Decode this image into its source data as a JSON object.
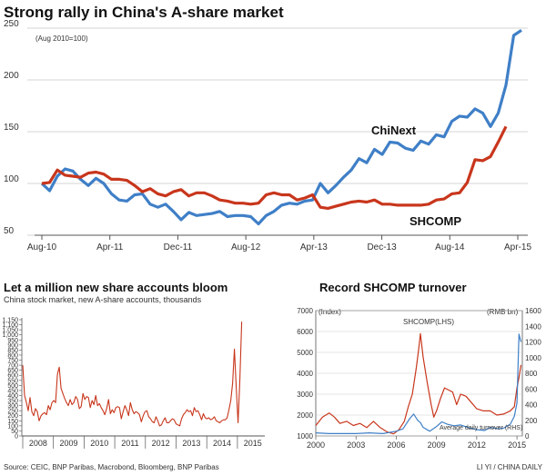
{
  "source": "Source: CEIC, BNP Paribas, Macrobond, Bloomberg, BNP Paribas",
  "credit": "LI YI / CHINA DAILY",
  "colors": {
    "chinext": "#3f7fc7",
    "shcomp": "#c8361c",
    "accounts": "#c8361c",
    "grid": "#c9c9c9",
    "axis": "#555555"
  },
  "chart_data": [
    {
      "type": "line",
      "title": "Strong rally in China's A-share market",
      "subtitle": "(Aug 2010=100)",
      "ylim": [
        50,
        250
      ],
      "yticks": [
        "50",
        "100",
        "150",
        "200",
        "250"
      ],
      "x_ticks": [
        "Aug-10",
        "Apr-11",
        "Dec-11",
        "Aug-12",
        "Apr-13",
        "Dec-13",
        "Aug-14",
        "Apr-15"
      ],
      "series": [
        {
          "name": "ChiNext",
          "values": [
            100,
            93,
            107,
            114,
            112,
            104,
            98,
            105,
            100,
            90,
            84,
            83,
            89,
            90,
            80,
            77,
            80,
            73,
            65,
            72,
            69,
            70,
            71,
            73,
            68,
            69,
            69,
            68,
            61,
            69,
            73,
            79,
            81,
            80,
            83,
            84,
            100,
            91,
            98,
            106,
            113,
            124,
            120,
            133,
            128,
            140,
            139,
            134,
            132,
            141,
            138,
            147,
            145,
            160,
            165,
            164,
            172,
            168,
            155,
            168,
            195,
            243,
            248
          ]
        },
        {
          "name": "SHCOMP",
          "values": [
            100,
            101,
            113,
            108,
            107,
            106,
            110,
            111,
            109,
            104,
            104,
            103,
            98,
            92,
            95,
            90,
            88,
            92,
            94,
            88,
            91,
            91,
            88,
            84,
            83,
            81,
            81,
            80,
            81,
            89,
            91,
            89,
            89,
            84,
            86,
            89,
            77,
            76,
            78,
            80,
            82,
            83,
            82,
            84,
            80,
            80,
            79,
            79,
            79,
            79,
            80,
            84,
            85,
            90,
            91,
            101,
            123,
            122,
            126,
            140,
            155
          ]
        }
      ]
    },
    {
      "type": "line",
      "title": "Let a million new share accounts bloom",
      "subtitle": "China stock market, new A-share accounts, thousands",
      "ylim": [
        0,
        1150
      ],
      "yticks": [
        "0",
        "50",
        "100",
        "150",
        "200",
        "250",
        "300",
        "350",
        "400",
        "450",
        "500",
        "550",
        "600",
        "650",
        "700",
        "750",
        "800",
        "850",
        "900",
        "950",
        "1,000",
        "1,050",
        "1,100",
        "1,150"
      ],
      "x_ticks": [
        "2008",
        "2009",
        "2010",
        "2011",
        "2012",
        "2013",
        "2014",
        "2015"
      ],
      "series": [
        {
          "name": "",
          "values": [
            700,
            400,
            330,
            250,
            380,
            240,
            200,
            270,
            240,
            150,
            200,
            220,
            230,
            210,
            300,
            260,
            330,
            350,
            330,
            610,
            680,
            470,
            420,
            370,
            330,
            300,
            360,
            310,
            330,
            390,
            360,
            270,
            290,
            420,
            360,
            390,
            380,
            280,
            350,
            310,
            400,
            300,
            320,
            280,
            250,
            210,
            270,
            360,
            220,
            260,
            230,
            280,
            290,
            280,
            170,
            240,
            300,
            260,
            200,
            330,
            260,
            220,
            240,
            230,
            210,
            140,
            200,
            240,
            250,
            190,
            170,
            140,
            130,
            190,
            150,
            100,
            110,
            150,
            180,
            130,
            130,
            150,
            170,
            160,
            120,
            110,
            100,
            170,
            210,
            230,
            260,
            240,
            250,
            200,
            280,
            240,
            250,
            210,
            160,
            220,
            180,
            170,
            180,
            160,
            170,
            190,
            150,
            140,
            130,
            150,
            160,
            160,
            180,
            260,
            350,
            520,
            860,
            480,
            130,
            560,
            1130
          ]
        }
      ]
    },
    {
      "type": "line",
      "title": "Record SHCOMP turnover",
      "y_left_label": "(Index)",
      "y_right_label": "(RMB bn)",
      "ylim_left": [
        1000,
        7000
      ],
      "ylim_right": [
        0,
        1600
      ],
      "yticks_left": [
        "1000",
        "2000",
        "3000",
        "4000",
        "5000",
        "6000",
        "7000"
      ],
      "yticks_right": [
        "0",
        "200",
        "400",
        "600",
        "800",
        "1000",
        "1200",
        "1400",
        "1600"
      ],
      "x_ticks": [
        "2000",
        "2003",
        "2006",
        "2009",
        "2012",
        "2015"
      ],
      "annotations": [
        "SHCOMP(LHS)",
        "Average daily turnover (RHS)"
      ],
      "series": [
        {
          "name": "SHCOMP(LHS)",
          "x": [
            2000,
            2000.5,
            2001,
            2001.4,
            2001.8,
            2002.3,
            2002.8,
            2003.3,
            2003.8,
            2004.3,
            2004.8,
            2005.3,
            2005.8,
            2006.2,
            2006.6,
            2006.9,
            2007.2,
            2007.5,
            2007.7,
            2007.8,
            2008,
            2008.3,
            2008.6,
            2008.8,
            2009,
            2009.3,
            2009.6,
            2009.9,
            2010.2,
            2010.5,
            2010.8,
            2011.2,
            2011.6,
            2012,
            2012.5,
            2013,
            2013.5,
            2014,
            2014.5,
            2014.8,
            2015,
            2015.15,
            2015.3
          ],
          "values": [
            1500,
            1900,
            2100,
            1900,
            1600,
            1700,
            1500,
            1600,
            1400,
            1700,
            1400,
            1200,
            1100,
            1300,
            1700,
            2400,
            3000,
            4300,
            5300,
            5900,
            4800,
            3600,
            2500,
            1900,
            2200,
            2800,
            3300,
            3200,
            3100,
            2500,
            3000,
            2900,
            2600,
            2300,
            2200,
            2200,
            2000,
            2050,
            2200,
            2400,
            3300,
            3800,
            4400
          ]
        },
        {
          "name": "Average daily turnover (RHS)",
          "x": [
            2000,
            2001,
            2002,
            2003,
            2004,
            2005,
            2006,
            2006.5,
            2007,
            2007.3,
            2007.6,
            2007.8,
            2008,
            2008.5,
            2009,
            2009.4,
            2009.8,
            2010.3,
            2010.8,
            2011.3,
            2012,
            2012.6,
            2013,
            2013.6,
            2014,
            2014.5,
            2014.8,
            2015,
            2015.15,
            2015.3
          ],
          "values": [
            40,
            30,
            30,
            30,
            40,
            30,
            60,
            90,
            220,
            280,
            200,
            170,
            110,
            60,
            120,
            180,
            150,
            130,
            140,
            110,
            80,
            70,
            110,
            90,
            100,
            150,
            250,
            420,
            1300,
            1200
          ]
        }
      ]
    }
  ]
}
